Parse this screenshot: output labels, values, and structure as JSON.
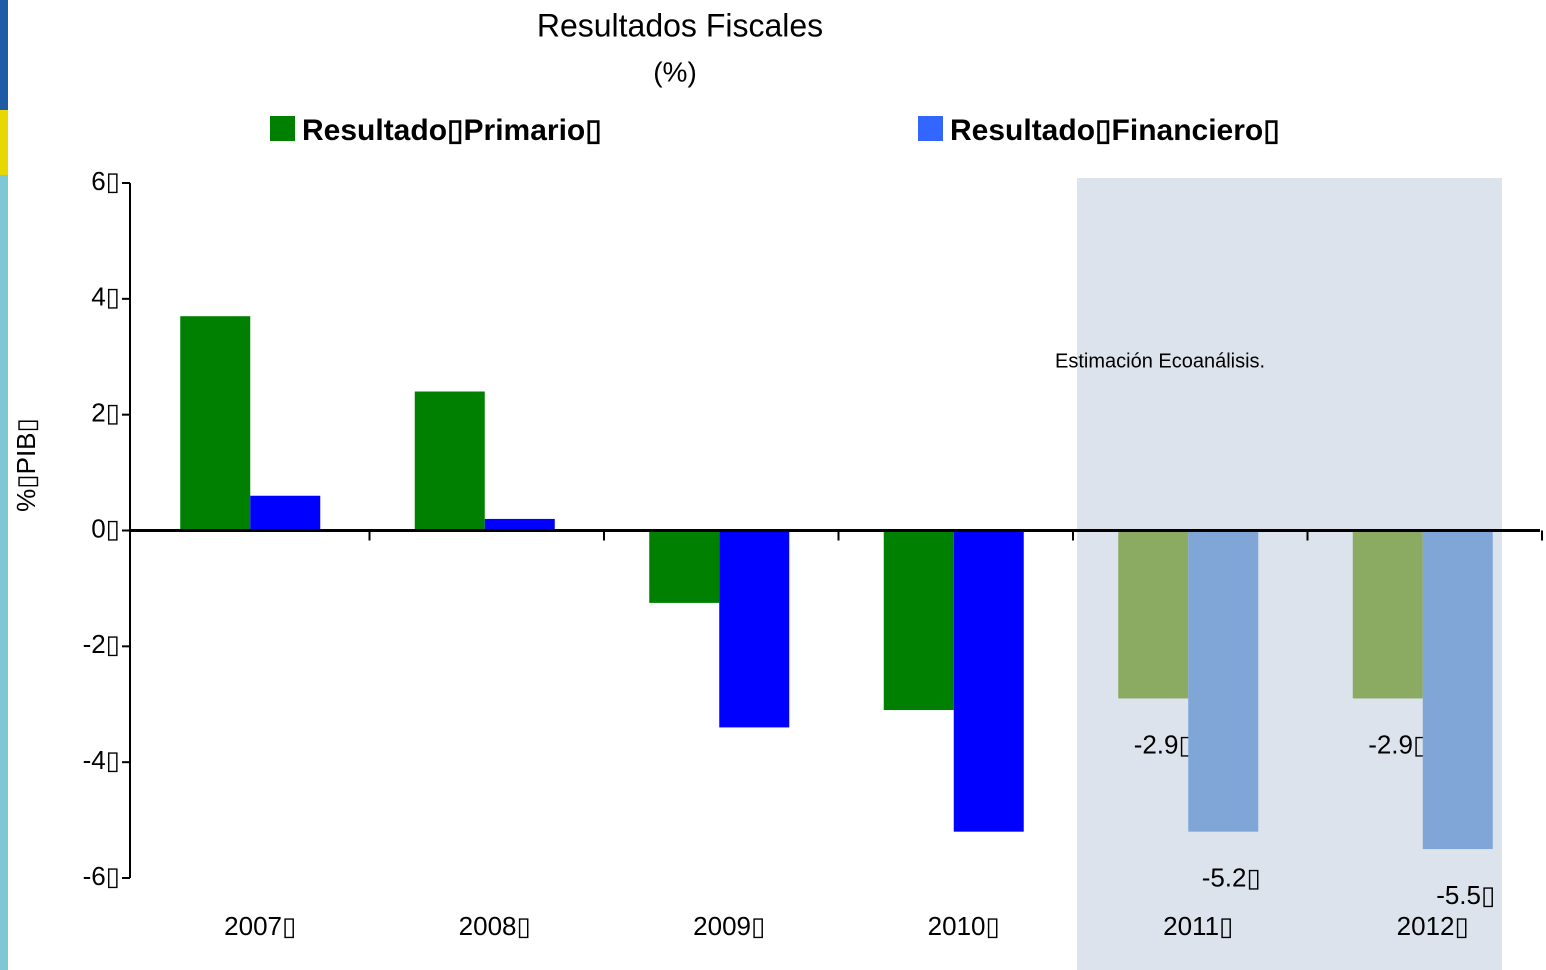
{
  "chart_data": {
    "type": "bar",
    "title": "Resultados Fiscales",
    "subtitle": "(%)",
    "y_label": "%▯PIB▯",
    "annotation": "Estimación Ecoanálisis.",
    "categories": [
      "2007▯",
      "2008▯",
      "2009▯",
      "2010▯",
      "2011▯",
      "2012▯"
    ],
    "series": [
      {
        "name": "Resultado▯Primario▯",
        "color": "#008000",
        "colors": [
          "#008000",
          "#008000",
          "#008000",
          "#008000",
          "#8cab62",
          "#8cab62"
        ],
        "values": [
          3.7,
          2.4,
          -1.25,
          -3.1,
          -2.9,
          -2.9
        ],
        "value_labels": [
          null,
          null,
          null,
          null,
          "-2.9▯",
          "-2.9▯"
        ]
      },
      {
        "name": "Resultado▯Financiero▯",
        "color": "#3366ff",
        "colors": [
          "#0000ff",
          "#0000ff",
          "#0000ff",
          "#0000ff",
          "#7fa6d6",
          "#7fa6d6"
        ],
        "values": [
          0.6,
          0.2,
          -3.4,
          -5.2,
          -5.2,
          -5.5
        ],
        "value_labels": [
          null,
          null,
          null,
          null,
          "-5.2▯",
          "-5.5▯"
        ]
      }
    ],
    "ylim": [
      -6,
      6
    ],
    "yticks": [
      {
        "value": -6,
        "label": "-6▯"
      },
      {
        "value": -4,
        "label": "-4▯"
      },
      {
        "value": -2,
        "label": "-2▯"
      },
      {
        "value": 0,
        "label": "0▯"
      },
      {
        "value": 2,
        "label": "2▯"
      },
      {
        "value": 4,
        "label": "4▯"
      },
      {
        "value": 6,
        "label": "6▯"
      }
    ],
    "shade": {
      "from_index": 4,
      "color": "#dde3ec"
    },
    "grid": false
  }
}
